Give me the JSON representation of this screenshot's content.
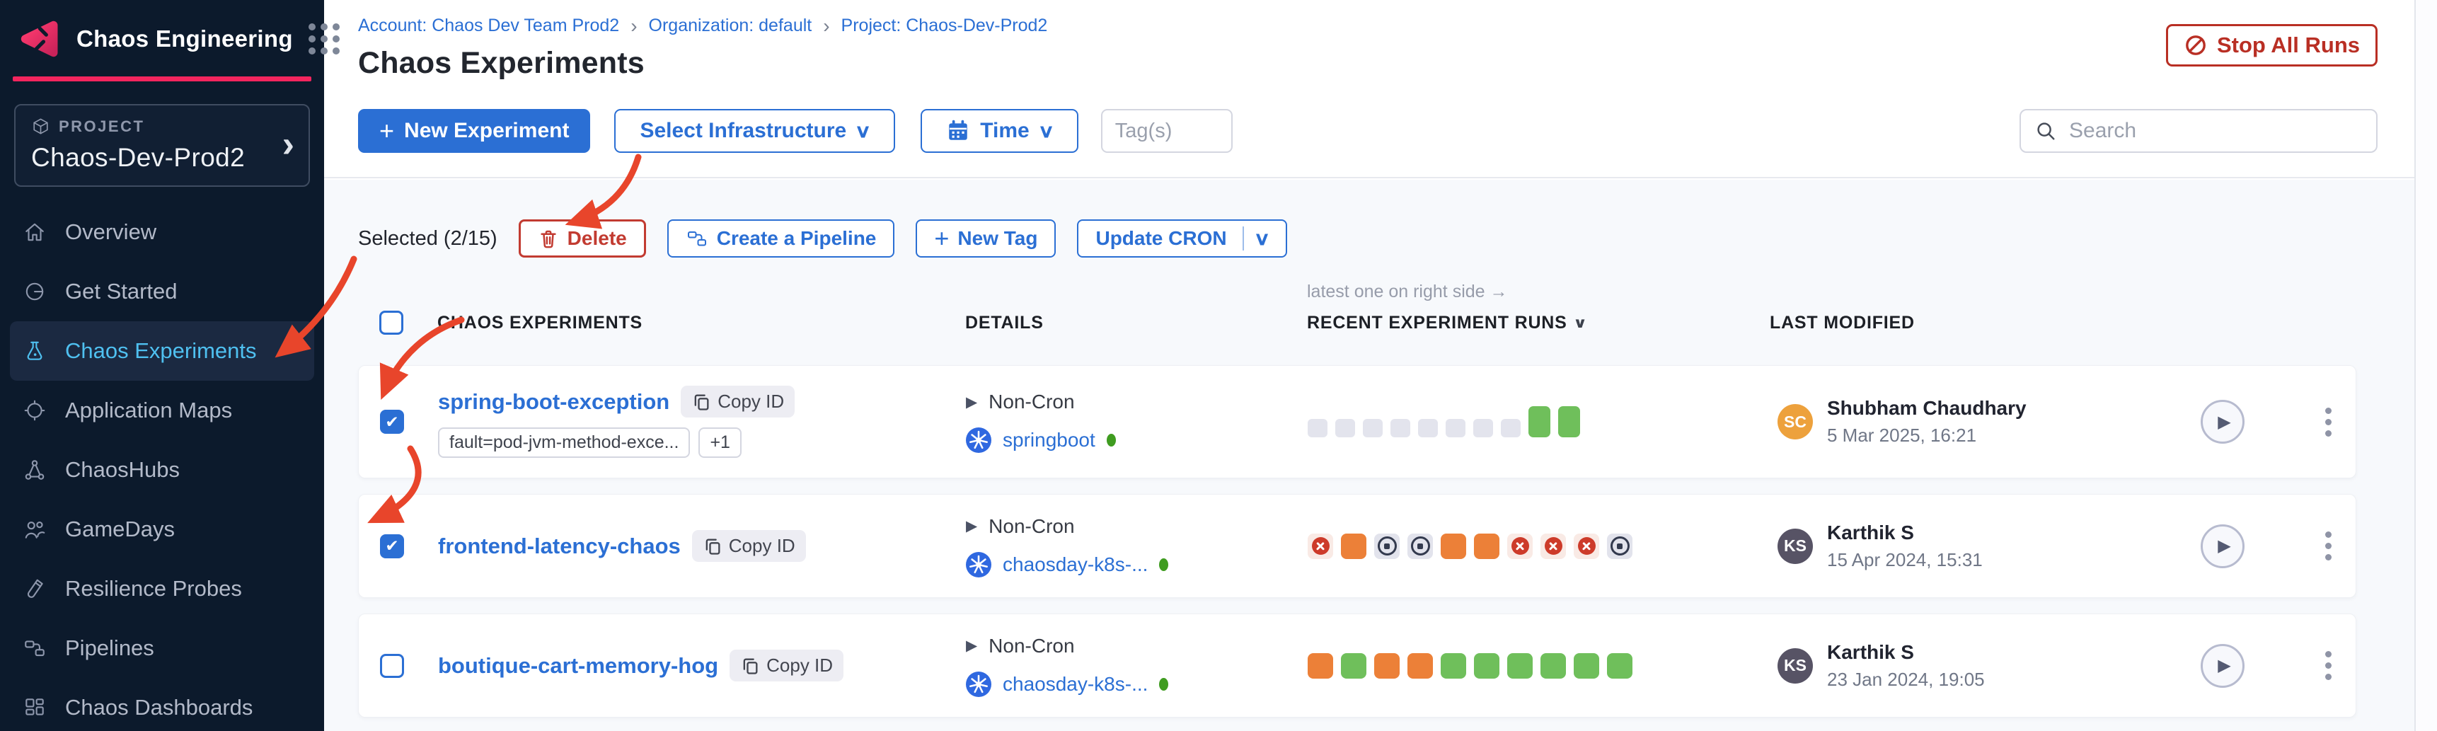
{
  "sidebar": {
    "brand": "Chaos Engineering",
    "project_label": "PROJECT",
    "project_name": "Chaos-Dev-Prod2",
    "items": [
      {
        "label": "Overview",
        "icon": "home",
        "active": false
      },
      {
        "label": "Get Started",
        "icon": "get-started",
        "active": false
      },
      {
        "label": "Chaos Experiments",
        "icon": "flask",
        "active": true
      },
      {
        "label": "Application Maps",
        "icon": "target",
        "active": false
      },
      {
        "label": "ChaosHubs",
        "icon": "network",
        "active": false
      },
      {
        "label": "GameDays",
        "icon": "people",
        "active": false
      },
      {
        "label": "Resilience Probes",
        "icon": "probe",
        "active": false
      },
      {
        "label": "Pipelines",
        "icon": "pipeline",
        "active": false
      },
      {
        "label": "Chaos Dashboards",
        "icon": "dashboard",
        "active": false
      }
    ]
  },
  "header": {
    "breadcrumb": [
      "Account: Chaos Dev Team Prod2",
      "Organization: default",
      "Project: Chaos-Dev-Prod2"
    ],
    "title": "Chaos Experiments",
    "stop_all_runs": "Stop All Runs"
  },
  "toolbar": {
    "new_experiment": "New Experiment",
    "select_infrastructure": "Select Infrastructure",
    "time": "Time",
    "tags_placeholder": "Tag(s)",
    "search_placeholder": "Search"
  },
  "selection_bar": {
    "selected_label": "Selected (2/15)",
    "delete": "Delete",
    "create_pipeline": "Create a Pipeline",
    "new_tag": "New Tag",
    "update_cron": "Update CRON"
  },
  "table": {
    "annotation": "latest one on right side →",
    "headers": {
      "experiments": "CHAOS EXPERIMENTS",
      "details": "DETAILS",
      "recent_runs": "RECENT EXPERIMENT RUNS",
      "last_modified": "LAST MODIFIED"
    },
    "rows": [
      {
        "name": "spring-boot-exception",
        "copy_id": "Copy ID",
        "checked": true,
        "tags": [
          "fault=pod-jvm-method-exce...",
          "+1"
        ],
        "schedule": "Non-Cron",
        "infra": "springboot",
        "runs": [
          "no-run",
          "no-run",
          "no-run",
          "no-run",
          "no-run",
          "no-run",
          "no-run",
          "no-run",
          "success-latest",
          "success-latest"
        ],
        "modified": {
          "initials": "SC",
          "name": "Shubham Chaudhary",
          "date": "5 Mar 2025, 16:21",
          "color": "#eda13c"
        }
      },
      {
        "name": "frontend-latency-chaos",
        "copy_id": "Copy ID",
        "checked": true,
        "tags": [],
        "schedule": "Non-Cron",
        "infra": "chaosday-k8s-...",
        "runs": [
          "failed",
          "running",
          "stopped",
          "stopped",
          "running",
          "running",
          "failed",
          "failed",
          "failed",
          "stopped"
        ],
        "modified": {
          "initials": "KS",
          "name": "Karthik S",
          "date": "15 Apr 2024, 15:31",
          "color": "#575365"
        }
      },
      {
        "name": "boutique-cart-memory-hog",
        "copy_id": "Copy ID",
        "checked": false,
        "tags": [],
        "schedule": "Non-Cron",
        "infra": "chaosday-k8s-...",
        "runs": [
          "running",
          "success",
          "running",
          "running",
          "success",
          "success",
          "success",
          "success",
          "success",
          "success"
        ],
        "modified": {
          "initials": "KS",
          "name": "Karthik S",
          "date": "23 Jan 2024, 19:05",
          "color": "#575365"
        }
      }
    ]
  },
  "colors": {
    "accent_blue": "#2b6fd4",
    "danger_red": "#b92f24",
    "brand_pink": "#f3255e",
    "run_green": "#6fbf5b",
    "run_orange": "#ec8038",
    "run_fail_red": "#cd3b2a",
    "annotation_arrow": "#e8452b"
  }
}
